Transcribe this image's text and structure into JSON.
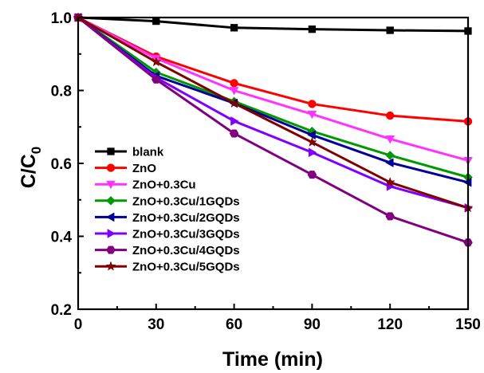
{
  "chart_data": {
    "type": "line",
    "xlabel": "Time (min)",
    "ylabel": "C/C",
    "ylabel_subscript": "0",
    "xlim": [
      0,
      150
    ],
    "ylim": [
      0.2,
      1.0
    ],
    "x_ticks": [
      "0",
      "30",
      "60",
      "90",
      "120",
      "150"
    ],
    "y_ticks": [
      "0.2",
      "0.4",
      "0.6",
      "0.8",
      "1.0"
    ],
    "grid": false,
    "legend_position": "bottom-left",
    "x": [
      0,
      30,
      60,
      90,
      120,
      150
    ],
    "series": [
      {
        "name": "blank",
        "color": "#000000",
        "marker": "square",
        "values": [
          1.0,
          0.99,
          0.972,
          0.968,
          0.965,
          0.963
        ]
      },
      {
        "name": "ZnO",
        "color": "#ff0000",
        "marker": "circle",
        "values": [
          1.0,
          0.893,
          0.82,
          0.763,
          0.731,
          0.715
        ]
      },
      {
        "name": "ZnO+0.3Cu",
        "color": "#ff33ff",
        "marker": "triangle-down",
        "values": [
          1.0,
          0.888,
          0.8,
          0.735,
          0.667,
          0.608
        ]
      },
      {
        "name": "ZnO+0.3Cu/1GQDs",
        "color": "#009900",
        "marker": "diamond",
        "values": [
          1.0,
          0.85,
          0.77,
          0.688,
          0.622,
          0.562
        ]
      },
      {
        "name": "ZnO+0.3Cu/2GQDs",
        "color": "#000099",
        "marker": "triangle-left",
        "values": [
          1.0,
          0.84,
          0.765,
          0.678,
          0.602,
          0.548
        ]
      },
      {
        "name": "ZnO+0.3Cu/3GQDs",
        "color": "#8000ff",
        "marker": "triangle-right",
        "values": [
          1.0,
          0.835,
          0.716,
          0.63,
          0.537,
          0.478
        ]
      },
      {
        "name": "ZnO+0.3Cu/4GQDs",
        "color": "#800080",
        "marker": "hexagon",
        "values": [
          1.0,
          0.83,
          0.682,
          0.569,
          0.455,
          0.383
        ]
      },
      {
        "name": "ZnO+0.3Cu/5GQDs",
        "color": "#800000",
        "marker": "star",
        "values": [
          1.0,
          0.878,
          0.765,
          0.658,
          0.548,
          0.478
        ]
      }
    ]
  }
}
